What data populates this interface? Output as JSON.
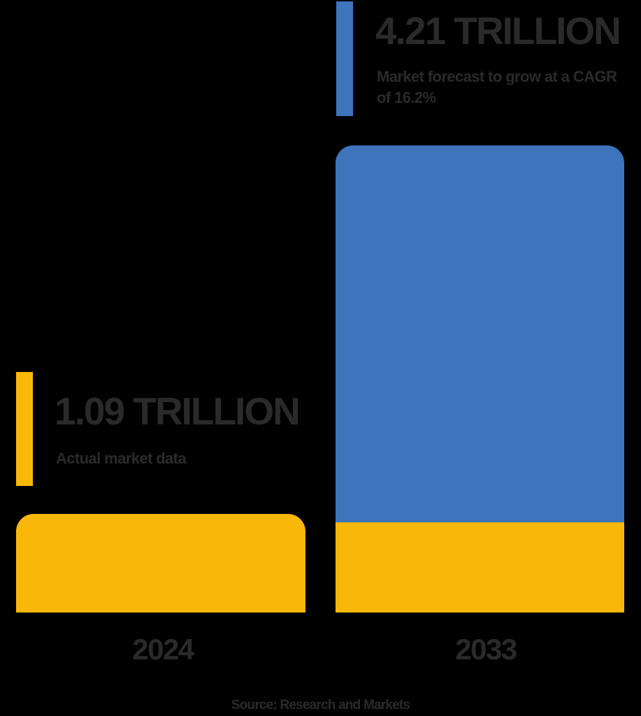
{
  "colors": {
    "background": "#000000",
    "actual": "#F9B709",
    "forecast": "#3D74BC",
    "text": "#2A2A2A"
  },
  "callouts": {
    "forecast": {
      "value": "4.21 TRILLION",
      "description": "Market forecast to grow at a CAGR of 16.2%"
    },
    "actual": {
      "value": "1.09 TRILLION",
      "description": "Actual market data"
    }
  },
  "axis": {
    "labels": [
      "2024",
      "2033"
    ]
  },
  "source": "Source: Research and Markets",
  "chart_data": {
    "type": "bar",
    "title": "",
    "xlabel": "",
    "ylabel": "",
    "categories": [
      "2024",
      "2033"
    ],
    "series": [
      {
        "name": "Actual market data",
        "values": [
          1.09,
          1.09
        ],
        "color": "#F9B709"
      },
      {
        "name": "Market forecast (growth)",
        "values": [
          0,
          3.12
        ],
        "color": "#3D74BC"
      }
    ],
    "totals": [
      1.09,
      4.21
    ],
    "units": "Trillion",
    "stacked": true,
    "annotations": [
      "1.09 TRILLION - Actual market data",
      "4.21 TRILLION - Market forecast to grow at a CAGR of 16.2%"
    ],
    "cagr": "16.2%",
    "grid": false,
    "legend": "none",
    "source": "Source: Research and Markets"
  }
}
